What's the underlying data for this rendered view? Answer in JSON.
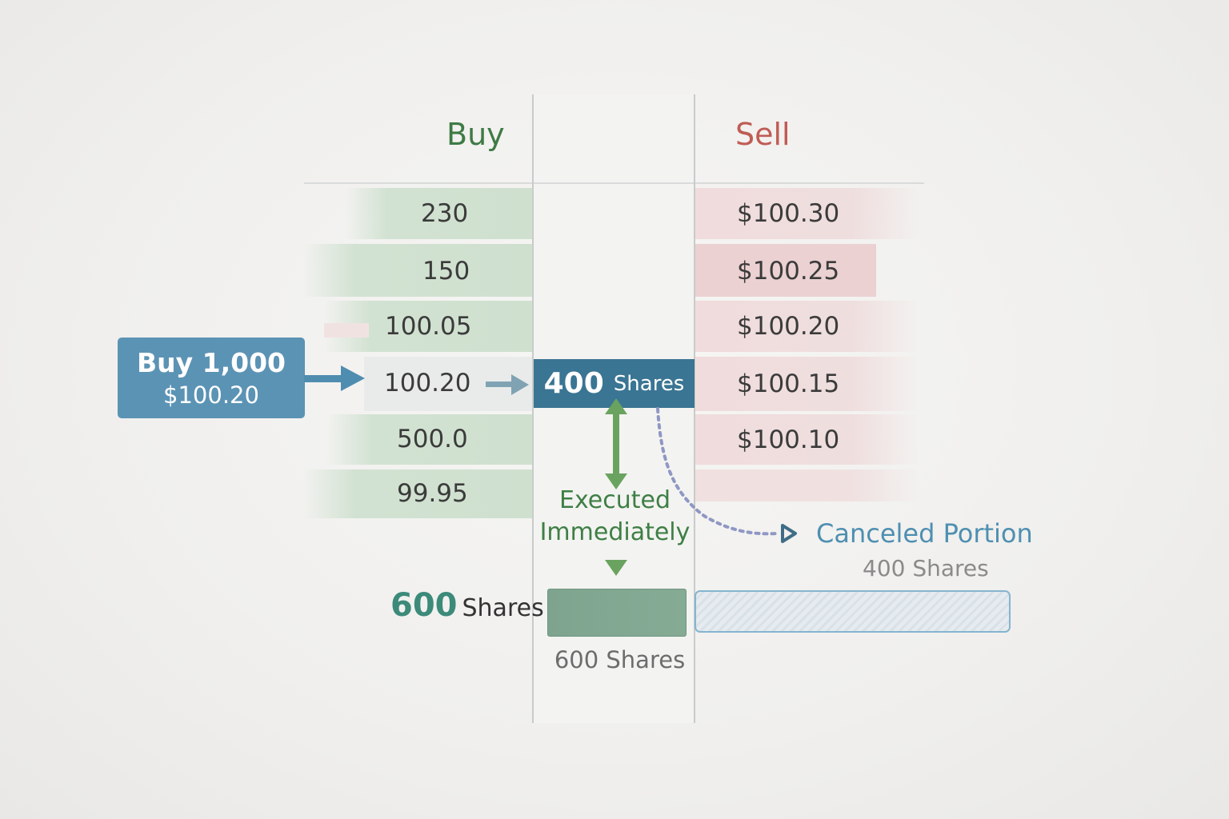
{
  "headers": {
    "buy": "Buy",
    "sell": "Sell"
  },
  "buy_rows": [
    "230",
    "150",
    "100.05",
    "100.20",
    "500.0",
    "99.95"
  ],
  "sell_rows": [
    "$100.30",
    "$100.25",
    "$100.20",
    "$100.15",
    "$100.10",
    ""
  ],
  "order": {
    "line1": "Buy 1,000",
    "line2": "$100.20"
  },
  "match": {
    "count": "400",
    "unit": "Shares"
  },
  "executed": {
    "line1": "Executed",
    "line2": "Immediately"
  },
  "filled": {
    "count": "600",
    "unit": "Shares",
    "caption": "600 Shares"
  },
  "canceled": {
    "label": "Canceled Portion",
    "caption": "400 Shares"
  },
  "colors": {
    "buy": "#3f7a45",
    "sell": "#bf5c54",
    "order": "#5b93b4",
    "match": "#3a7593",
    "executed": "#3e7f45",
    "canceled": "#4e8fb1"
  }
}
